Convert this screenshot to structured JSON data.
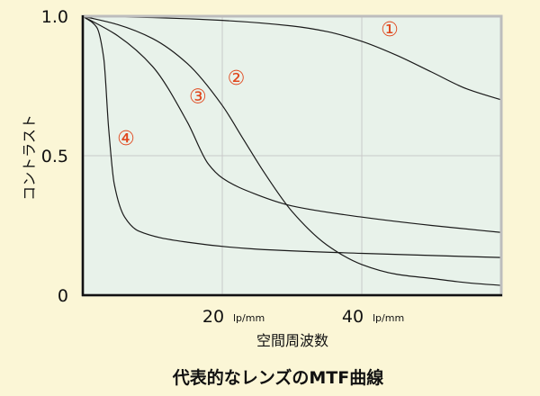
{
  "chart_data": {
    "type": "line",
    "title": "代表的なレンズのMTF曲線",
    "xlabel": "空間周波数",
    "ylabel": "コントラスト",
    "xlim": [
      0,
      60
    ],
    "ylim": [
      0,
      1
    ],
    "x_unit": "lp/mm",
    "x_ticks": [
      {
        "value": 20,
        "label": "20"
      },
      {
        "value": 40,
        "label": "40"
      }
    ],
    "y_ticks": [
      {
        "value": 0,
        "label": "0"
      },
      {
        "value": 0.5,
        "label": "0.5"
      },
      {
        "value": 1,
        "label": "1.0"
      }
    ],
    "grid": true,
    "series": [
      {
        "name": "①",
        "color": "#1a1a1a",
        "label_point": {
          "x": 44,
          "y": 0.955
        },
        "points": [
          [
            0,
            1.0
          ],
          [
            10,
            0.995
          ],
          [
            20,
            0.985
          ],
          [
            30,
            0.965
          ],
          [
            35,
            0.945
          ],
          [
            40,
            0.91
          ],
          [
            45,
            0.86
          ],
          [
            50,
            0.8
          ],
          [
            55,
            0.74
          ],
          [
            60,
            0.7
          ]
        ]
      },
      {
        "name": "②",
        "color": "#1a1a1a",
        "label_point": {
          "x": 22,
          "y": 0.78
        },
        "points": [
          [
            0,
            1.0
          ],
          [
            5,
            0.97
          ],
          [
            10,
            0.92
          ],
          [
            15,
            0.83
          ],
          [
            20,
            0.68
          ],
          [
            23,
            0.56
          ],
          [
            26,
            0.44
          ],
          [
            30,
            0.3
          ],
          [
            35,
            0.18
          ],
          [
            40,
            0.11
          ],
          [
            45,
            0.075
          ],
          [
            50,
            0.06
          ],
          [
            55,
            0.045
          ],
          [
            60,
            0.035
          ]
        ]
      },
      {
        "name": "③",
        "color": "#1a1a1a",
        "label_point": {
          "x": 16.5,
          "y": 0.715
        },
        "points": [
          [
            0,
            1.0
          ],
          [
            5,
            0.93
          ],
          [
            10,
            0.82
          ],
          [
            15,
            0.62
          ],
          [
            18,
            0.47
          ],
          [
            20,
            0.42
          ],
          [
            25,
            0.36
          ],
          [
            30,
            0.32
          ],
          [
            40,
            0.28
          ],
          [
            50,
            0.25
          ],
          [
            60,
            0.225
          ]
        ]
      },
      {
        "name": "④",
        "color": "#1a1a1a",
        "label_point": {
          "x": 6.2,
          "y": 0.565
        },
        "points": [
          [
            0,
            1.0
          ],
          [
            2,
            0.96
          ],
          [
            3,
            0.85
          ],
          [
            3.7,
            0.6
          ],
          [
            4.5,
            0.4
          ],
          [
            6,
            0.28
          ],
          [
            8,
            0.23
          ],
          [
            15,
            0.19
          ],
          [
            25,
            0.165
          ],
          [
            40,
            0.15
          ],
          [
            60,
            0.135
          ]
        ]
      }
    ]
  }
}
